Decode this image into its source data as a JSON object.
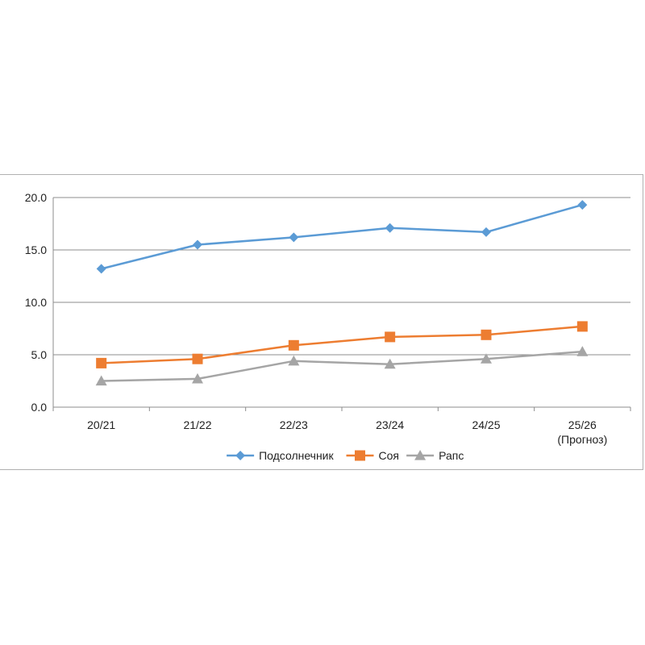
{
  "chart_data": {
    "type": "line",
    "categories": [
      "20/21",
      "21/22",
      "22/23",
      "23/24",
      "24/25",
      "25/26"
    ],
    "category_sublabels": [
      "",
      "",
      "",
      "",
      "",
      "(Прогноз)"
    ],
    "ylim": [
      0,
      20
    ],
    "yticks": [
      "0.0",
      "5.0",
      "10.0",
      "15.0",
      "20.0"
    ],
    "grid": true,
    "legend_position": "bottom",
    "series": [
      {
        "name": "Подсолнечник",
        "values": [
          13.2,
          15.5,
          16.2,
          17.1,
          16.7,
          19.3
        ],
        "color": "#5b9bd5",
        "marker": "diamond"
      },
      {
        "name": "Соя",
        "values": [
          4.2,
          4.6,
          5.9,
          6.7,
          6.9,
          7.7
        ],
        "color": "#ed7d31",
        "marker": "square"
      },
      {
        "name": "Рапс",
        "values": [
          2.5,
          2.7,
          4.4,
          4.1,
          4.6,
          5.3
        ],
        "color": "#a5a5a5",
        "marker": "triangle"
      }
    ]
  }
}
